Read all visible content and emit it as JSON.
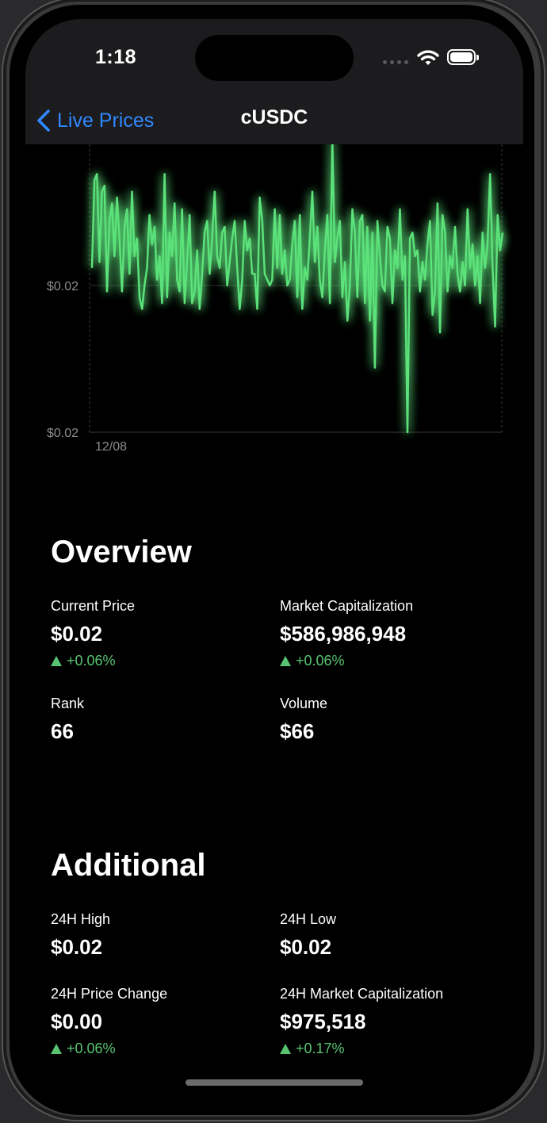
{
  "status_bar": {
    "time": "1:18"
  },
  "nav": {
    "back_label": "Live Prices",
    "title": "cUSDC"
  },
  "chart_data": {
    "type": "line",
    "x_tick_labels": [
      "12/08"
    ],
    "y_tick_labels": [
      "$0.02",
      "$0.02"
    ],
    "series": [
      {
        "color": "#5ce27a",
        "values": [
          3,
          18,
          19,
          4,
          16,
          17,
          -1,
          11,
          14,
          5,
          15,
          8,
          -1,
          10,
          13,
          2,
          16,
          5,
          8,
          -2,
          -4,
          0,
          3,
          12,
          7,
          10,
          1,
          5,
          -3,
          19,
          -2,
          9,
          5,
          14,
          1,
          -1,
          13,
          -3,
          4,
          12,
          -3,
          -1,
          6,
          -4,
          2,
          9,
          11,
          2,
          8,
          16,
          5,
          3,
          9,
          10,
          0,
          4,
          8,
          11,
          3,
          -4,
          1,
          11,
          6,
          8,
          2,
          2,
          -4,
          15,
          11,
          2,
          1,
          0,
          1,
          13,
          3,
          12,
          2,
          6,
          0,
          1,
          7,
          11,
          -2,
          12,
          -4,
          3,
          1,
          8,
          16,
          4,
          10,
          1,
          -2,
          6,
          12,
          -3,
          25,
          4,
          8,
          11,
          -2,
          4,
          -6,
          0,
          13,
          9,
          -2,
          11,
          12,
          -3,
          10,
          -6,
          9,
          -14,
          11,
          5,
          0,
          -1,
          10,
          8,
          -3,
          6,
          3,
          13,
          1,
          5,
          -25,
          8,
          9,
          5,
          6,
          -1,
          4,
          1,
          7,
          11,
          -5,
          -1,
          14,
          -8,
          12,
          9,
          -1,
          5,
          3,
          10,
          2,
          -1,
          4,
          0,
          13,
          3,
          7,
          0,
          5,
          -3,
          9,
          3,
          7,
          19,
          3,
          -7,
          12,
          6,
          9
        ]
      }
    ],
    "grid": true
  },
  "overview": {
    "title": "Overview",
    "stats": [
      {
        "label": "Current Price",
        "value": "$0.02",
        "change": "+0.06%"
      },
      {
        "label": "Market Capitalization",
        "value": "$586,986,948",
        "change": "+0.06%"
      },
      {
        "label": "Rank",
        "value": "66"
      },
      {
        "label": "Volume",
        "value": "$66"
      }
    ]
  },
  "additional": {
    "title": "Additional",
    "stats": [
      {
        "label": "24H High",
        "value": "$0.02"
      },
      {
        "label": "24H Low",
        "value": "$0.02"
      },
      {
        "label": "24H Price Change",
        "value": "$0.00",
        "change": "+0.06%"
      },
      {
        "label": "24H Market Capitalization",
        "value": "$975,518",
        "change": "+0.17%"
      }
    ]
  }
}
